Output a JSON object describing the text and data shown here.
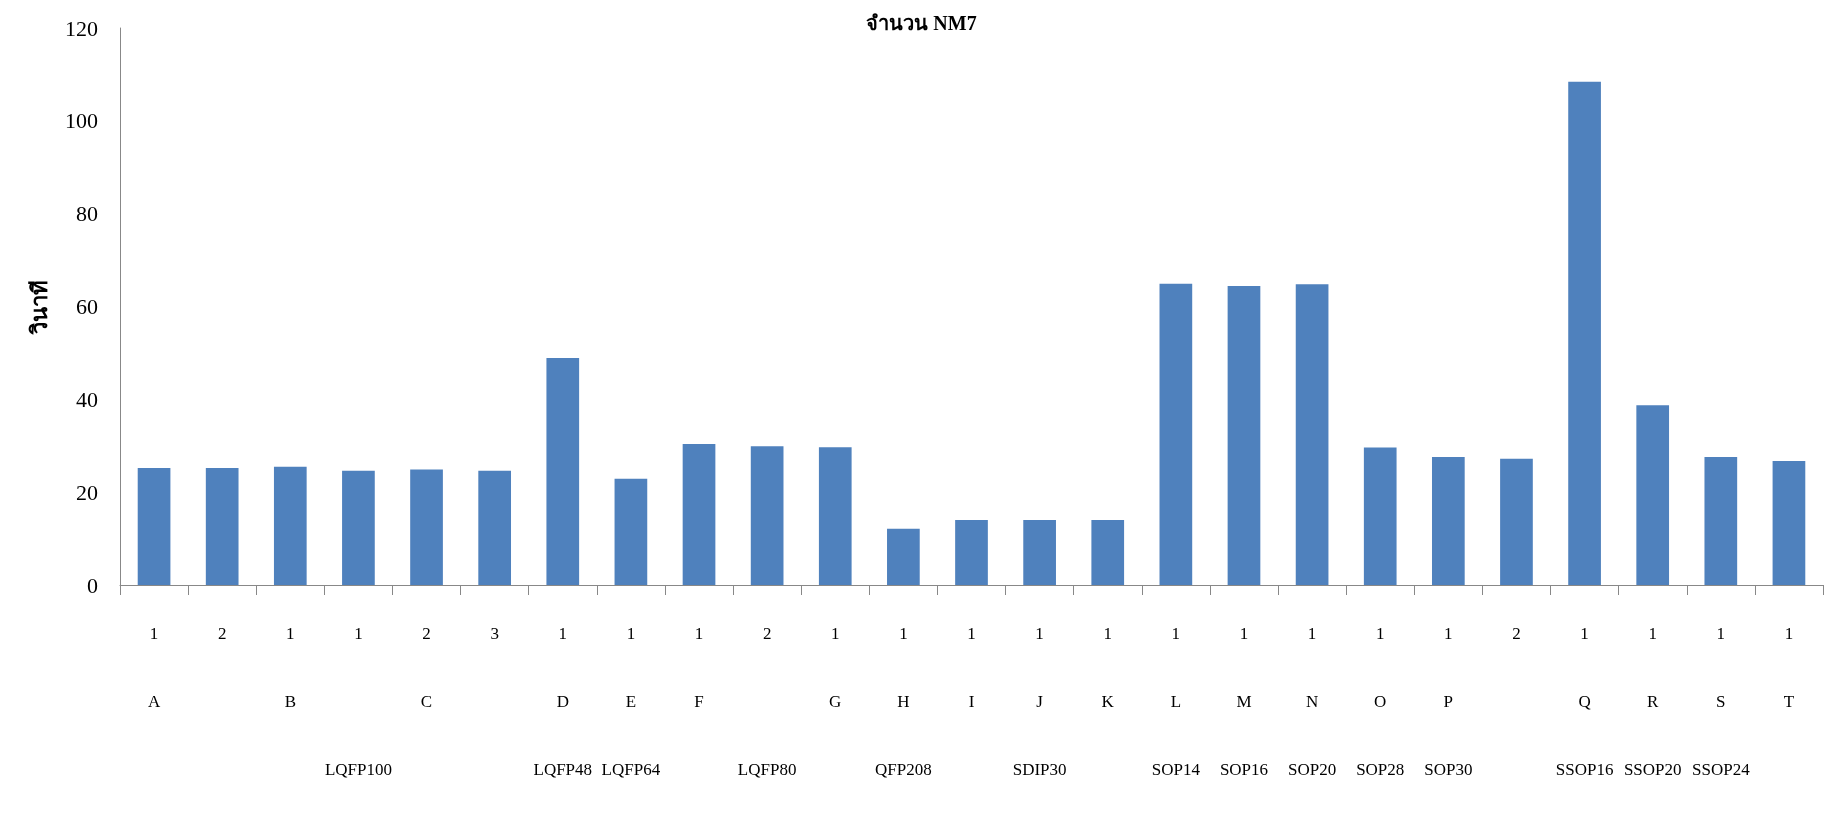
{
  "chart_data": {
    "type": "bar",
    "title": "จำนวน NM7",
    "ylabel": "วินาที",
    "categories": [
      "1\nA\n",
      "2\n\n",
      "1\nB\n",
      "1\n\nLQFP100",
      "2\nC\n",
      "3\n\n",
      "1\nD\nLQFP48",
      "1\nE\nLQFP64",
      "1\nF\n",
      "2\n\nLQFP80",
      "1\nG\n",
      "1\nH\nQFP208",
      "1\nI\n",
      "1\nJ\nSDIP30",
      "1\nK\n",
      "1\nL\nSOP14",
      "1\nM\nSOP16",
      "1\nN\nSOP20",
      "1\nO\nSOP28",
      "1\nP\nSOP30",
      "2\n\n",
      "1\nQ\nSSOP16",
      "1\nR\nSSOP20",
      "1\nS\nSSOP24",
      "1\nT\n"
    ],
    "values": [
      25.2,
      25.2,
      25.5,
      24.6,
      24.9,
      24.6,
      48.9,
      22.9,
      30.4,
      29.9,
      29.7,
      12.1,
      14.0,
      14.0,
      14.0,
      64.9,
      64.4,
      64.8,
      29.6,
      27.6,
      27.2,
      108.4,
      38.7,
      27.6,
      26.7
    ],
    "color": "#4f81bd",
    "ylim": [
      0,
      120
    ],
    "yticks": [
      0,
      20,
      40,
      60,
      80,
      100,
      120
    ],
    "grid": false
  }
}
